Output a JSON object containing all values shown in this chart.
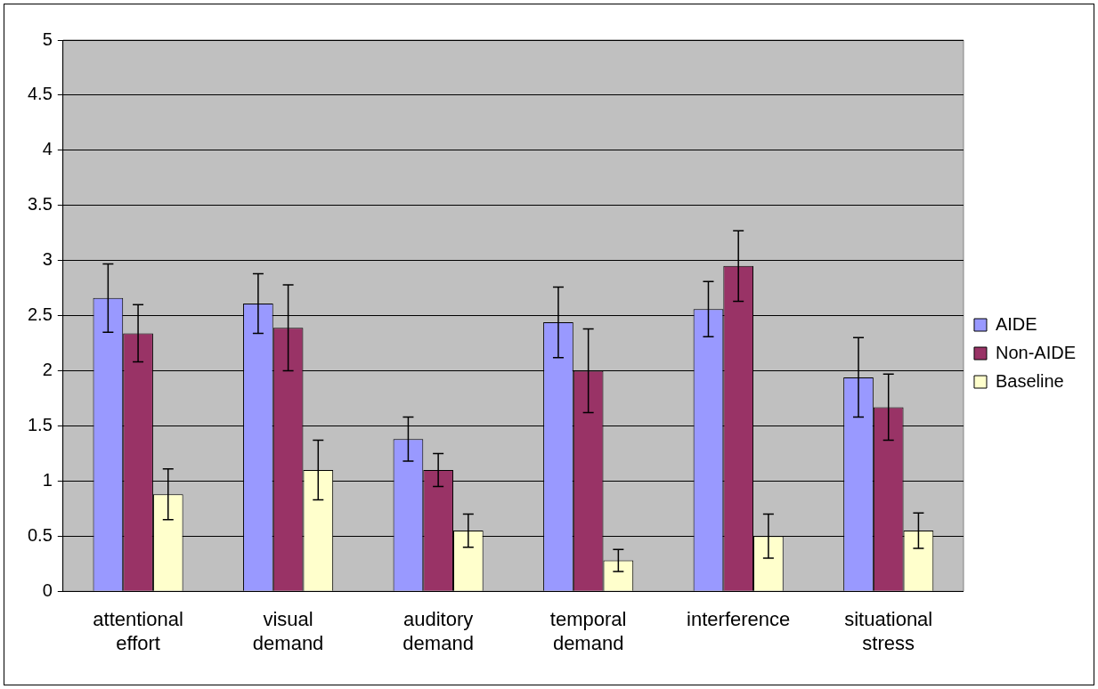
{
  "chart_data": {
    "type": "bar",
    "categories": [
      "attentional effort",
      "visual demand",
      "auditory demand",
      "temporal demand",
      "interference",
      "situational stress"
    ],
    "series": [
      {
        "name": "AIDE",
        "color": "#9999ff",
        "values": [
          2.66,
          2.61,
          1.38,
          2.44,
          2.56,
          1.94
        ],
        "errors": [
          0.31,
          0.27,
          0.2,
          0.32,
          0.25,
          0.36
        ]
      },
      {
        "name": "Non-AIDE",
        "color": "#993366",
        "values": [
          2.34,
          2.39,
          1.1,
          2.0,
          2.95,
          1.67
        ],
        "errors": [
          0.26,
          0.39,
          0.15,
          0.38,
          0.32,
          0.3
        ]
      },
      {
        "name": "Baseline",
        "color": "#ffffcc",
        "values": [
          0.88,
          1.1,
          0.55,
          0.28,
          0.5,
          0.55
        ],
        "errors": [
          0.23,
          0.27,
          0.15,
          0.1,
          0.2,
          0.16
        ]
      }
    ],
    "ylim": [
      0,
      5
    ],
    "yticks": [
      0,
      0.5,
      1,
      1.5,
      2,
      2.5,
      3,
      3.5,
      4,
      4.5,
      5
    ],
    "grid": "y",
    "legend": "right"
  }
}
